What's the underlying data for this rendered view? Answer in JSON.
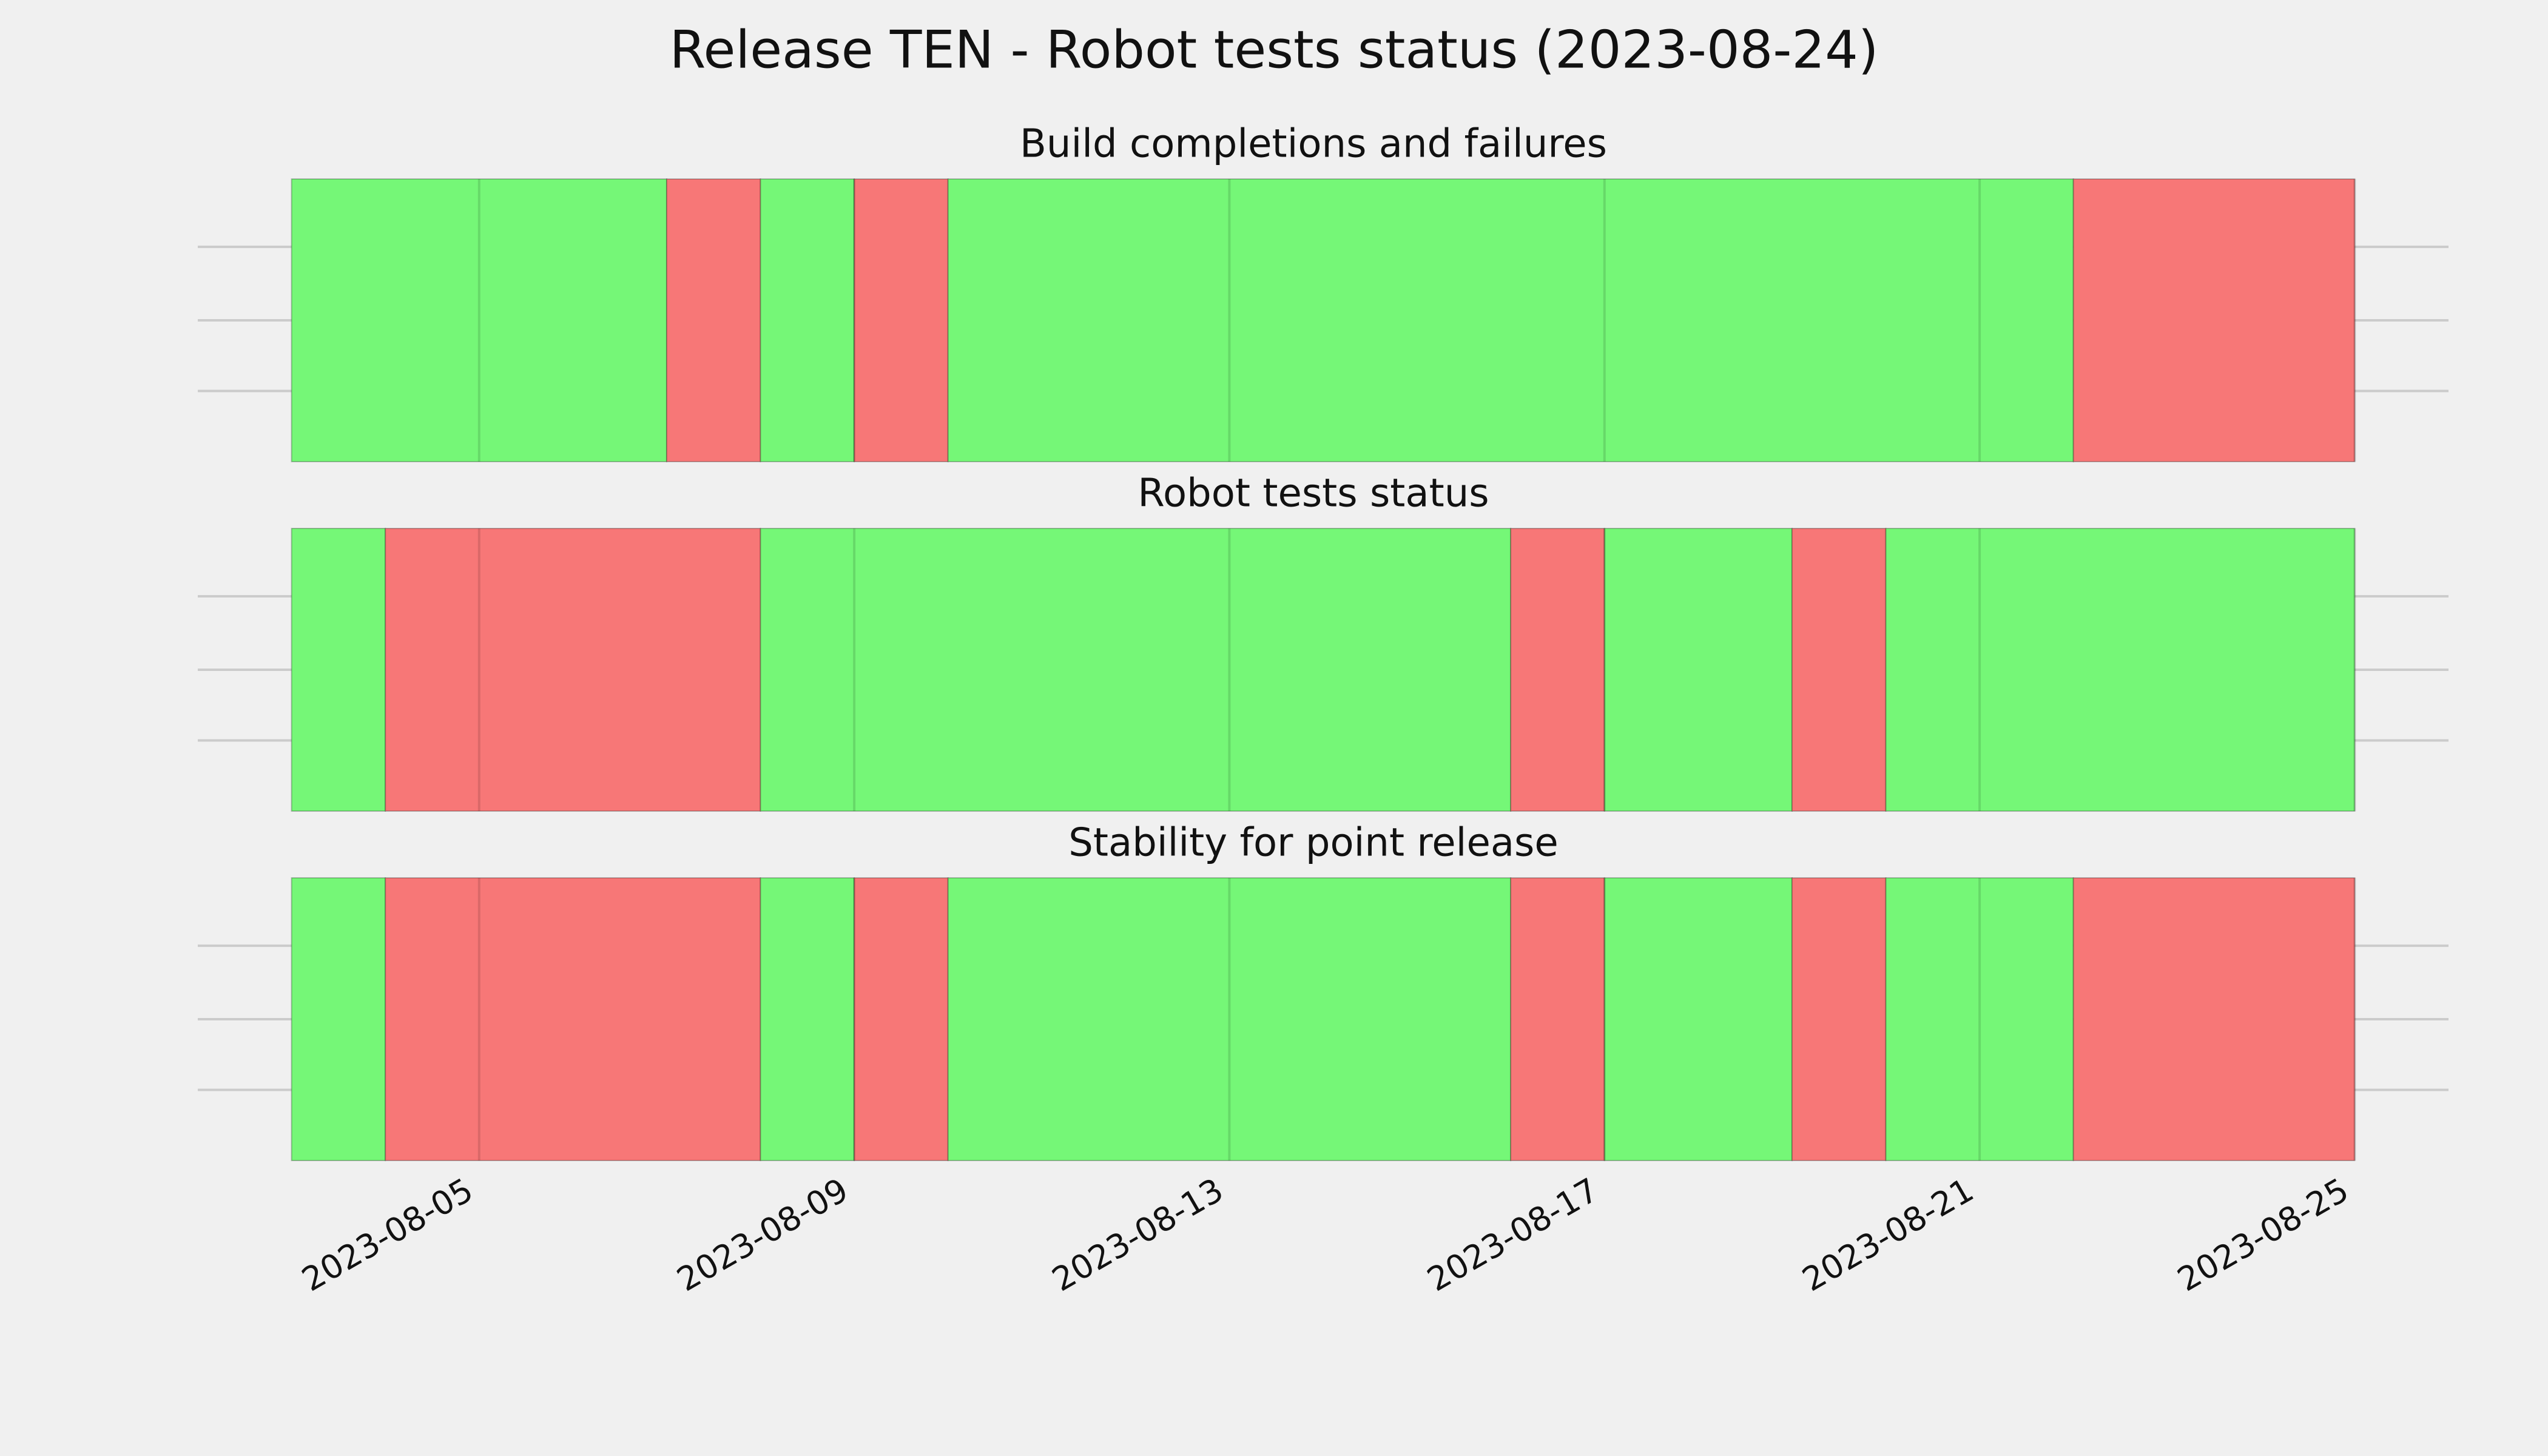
{
  "title": "Release TEN - Robot tests status (2023-08-24)",
  "chart_data": [
    {
      "type": "timeline",
      "title": "Build completions and failures",
      "bars": [
        {
          "start": "2023-08-03",
          "end": "2023-08-07",
          "color": "#75f777"
        },
        {
          "start": "2023-08-07",
          "end": "2023-08-08",
          "color": "#f77777"
        },
        {
          "start": "2023-08-08",
          "end": "2023-08-09",
          "color": "#75f777"
        },
        {
          "start": "2023-08-09",
          "end": "2023-08-10",
          "color": "#f77777"
        },
        {
          "start": "2023-08-10",
          "end": "2023-08-22",
          "color": "#75f777"
        },
        {
          "start": "2023-08-22",
          "end": "2023-08-25",
          "color": "#f77777"
        }
      ],
      "xlim": [
        "2023-08-02",
        "2023-08-26"
      ],
      "xticks": [
        "2023-08-05",
        "2023-08-09",
        "2023-08-13",
        "2023-08-17",
        "2023-08-21",
        "2023-08-25"
      ],
      "grid": true,
      "show_xtick_labels": false
    },
    {
      "type": "timeline",
      "title": "Robot tests status",
      "bars": [
        {
          "start": "2023-08-03",
          "end": "2023-08-04",
          "color": "#75f777"
        },
        {
          "start": "2023-08-04",
          "end": "2023-08-08",
          "color": "#f77777"
        },
        {
          "start": "2023-08-08",
          "end": "2023-08-16",
          "color": "#75f777"
        },
        {
          "start": "2023-08-16",
          "end": "2023-08-17",
          "color": "#f77777"
        },
        {
          "start": "2023-08-17",
          "end": "2023-08-19",
          "color": "#75f777"
        },
        {
          "start": "2023-08-19",
          "end": "2023-08-20",
          "color": "#f77777"
        },
        {
          "start": "2023-08-20",
          "end": "2023-08-25",
          "color": "#75f777"
        }
      ],
      "xlim": [
        "2023-08-02",
        "2023-08-26"
      ],
      "xticks": [
        "2023-08-05",
        "2023-08-09",
        "2023-08-13",
        "2023-08-17",
        "2023-08-21",
        "2023-08-25"
      ],
      "grid": true,
      "show_xtick_labels": false
    },
    {
      "type": "timeline",
      "title": "Stability for point release",
      "bars": [
        {
          "start": "2023-08-03",
          "end": "2023-08-04",
          "color": "#75f777"
        },
        {
          "start": "2023-08-04",
          "end": "2023-08-08",
          "color": "#f77777"
        },
        {
          "start": "2023-08-08",
          "end": "2023-08-09",
          "color": "#75f777"
        },
        {
          "start": "2023-08-09",
          "end": "2023-08-10",
          "color": "#f77777"
        },
        {
          "start": "2023-08-10",
          "end": "2023-08-16",
          "color": "#75f777"
        },
        {
          "start": "2023-08-16",
          "end": "2023-08-17",
          "color": "#f77777"
        },
        {
          "start": "2023-08-17",
          "end": "2023-08-19",
          "color": "#75f777"
        },
        {
          "start": "2023-08-19",
          "end": "2023-08-20",
          "color": "#f77777"
        },
        {
          "start": "2023-08-20",
          "end": "2023-08-22",
          "color": "#75f777"
        },
        {
          "start": "2023-08-22",
          "end": "2023-08-25",
          "color": "#f77777"
        }
      ],
      "xlim": [
        "2023-08-02",
        "2023-08-26"
      ],
      "xticks": [
        "2023-08-05",
        "2023-08-09",
        "2023-08-13",
        "2023-08-17",
        "2023-08-21",
        "2023-08-25"
      ],
      "grid": true,
      "show_xtick_labels": true
    }
  ]
}
